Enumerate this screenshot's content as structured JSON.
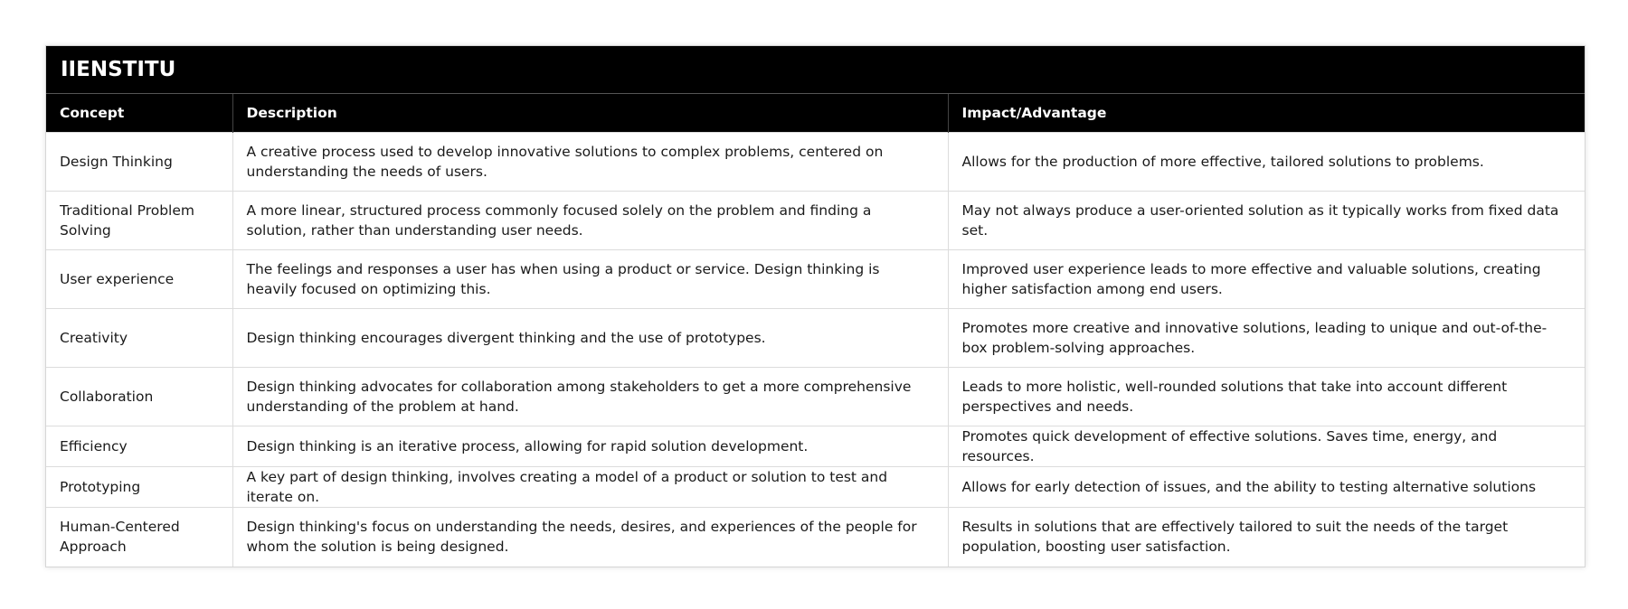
{
  "brand": "IIENSTITU",
  "headers": [
    "Concept",
    "Description",
    "Impact/Advantage"
  ],
  "rows": [
    {
      "concept": "Design Thinking",
      "description": "A creative process used to develop innovative solutions to complex problems, centered on understanding the needs of users.",
      "impact": "Allows for the production of more effective, tailored solutions to problems."
    },
    {
      "concept": "Traditional Problem Solving",
      "description": "A more linear, structured process commonly focused solely on the problem and finding a solution, rather than understanding user needs.",
      "impact": "May not always produce a user-oriented solution as it typically works from fixed data set."
    },
    {
      "concept": "User experience",
      "description": "The feelings and responses a user has when using a product or service. Design thinking is heavily focused on optimizing this.",
      "impact": "Improved user experience leads to more effective and valuable solutions, creating higher satisfaction among end users."
    },
    {
      "concept": "Creativity",
      "description": "Design thinking encourages divergent thinking and the use of prototypes.",
      "impact": "Promotes more creative and innovative solutions, leading to unique and out-of-the-box problem-solving approaches."
    },
    {
      "concept": "Collaboration",
      "description": "Design thinking advocates for collaboration among stakeholders to get a more comprehensive understanding of the problem at hand.",
      "impact": "Leads to more holistic, well-rounded solutions that take into account different perspectives and needs."
    },
    {
      "concept": "Efficiency",
      "description": "Design thinking is an iterative process, allowing for rapid solution development.",
      "impact": "Promotes quick development of effective solutions. Saves time, energy, and resources."
    },
    {
      "concept": "Prototyping",
      "description": "A key part of design thinking, involves creating a model of a product or solution to test and iterate on.",
      "impact": "Allows for early detection of issues, and the ability to testing alternative solutions"
    },
    {
      "concept": "Human-Centered Approach",
      "description": "Design thinking's focus on understanding the needs, desires, and experiences of the people for whom the solution is being designed.",
      "impact": "Results in solutions that are effectively tailored to suit the needs of the target population, boosting user satisfaction."
    }
  ]
}
